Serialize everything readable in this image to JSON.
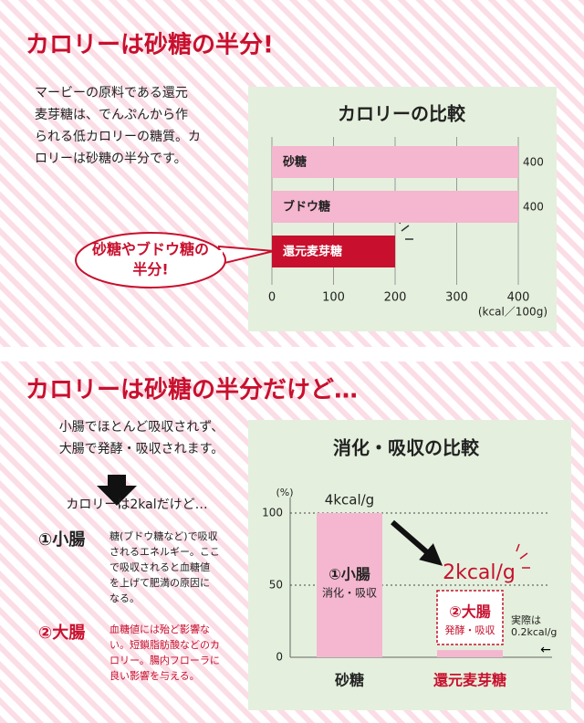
{
  "sections": [
    {
      "heading": "カロリーは砂糖の半分!",
      "text": [
        "マービーの原料である還元",
        "麦芽糖は、でんぷんから作",
        "られる低カロリーの糖質。カ",
        "ロリーは砂糖の半分です。"
      ]
    },
    {
      "heading": "カロリーは砂糖の半分だけど…",
      "text": [
        "小腸でほとんど吸収されず、",
        "大腸で発酵・吸収されます。"
      ],
      "lead": "カロリーは2kalだけど…",
      "items": [
        {
          "title": "①小腸",
          "desc": [
            "糖(ブドウ糖など)で吸収",
            "されるエネルギー。ここ",
            "で吸収されると血糖値",
            "を上げて肥満の原因に",
            "なる。"
          ]
        },
        {
          "title": "②大腸",
          "desc": [
            "血糖値には殆ど影響な",
            "い。短鎖脂肪酸などのカ",
            "ロリー。腸内フローラに",
            "良い影響を与える。"
          ]
        }
      ]
    }
  ],
  "chart_data": [
    {
      "type": "barh",
      "title": "カロリーの比較",
      "categories": [
        "砂糖",
        "ブドウ糖",
        "還元麦芽糖"
      ],
      "values": [
        400,
        400,
        200
      ],
      "colors": [
        "#f5b6cf",
        "#f5b6cf",
        "#c8102e"
      ],
      "show_value": [
        true,
        true,
        false
      ],
      "xlim": [
        0,
        400
      ],
      "xticks": [
        0,
        100,
        200,
        300,
        400
      ],
      "x_unit": "(kcal／100g)",
      "grid": true,
      "callout": [
        "砂糖やブドウ糖の",
        "半分!"
      ]
    },
    {
      "type": "bar",
      "title": "消化・吸収の比較",
      "categories": [
        "砂糖",
        "還元麦芽糖"
      ],
      "category_colors": [
        "#222222",
        "#c8102e"
      ],
      "series": [
        {
          "name": "①小腸",
          "label": "消化・吸収",
          "color": "#f5b6cf",
          "values": [
            100,
            null
          ]
        },
        {
          "name": "②大腸",
          "label": "発酵・吸収",
          "color": "#c8102e",
          "dashed": true,
          "values": [
            null,
            50
          ]
        }
      ],
      "actual": {
        "values": [
          null,
          5
        ],
        "color": "#f5b6cf",
        "label": [
          "実際は",
          "0.2kcal/g"
        ]
      },
      "ylim": [
        0,
        100
      ],
      "yticks": [
        0,
        50,
        100
      ],
      "y_unit": "(%)",
      "grid": true,
      "annotations": {
        "top": "4kcal/g",
        "half": "2kcal/g"
      }
    }
  ]
}
